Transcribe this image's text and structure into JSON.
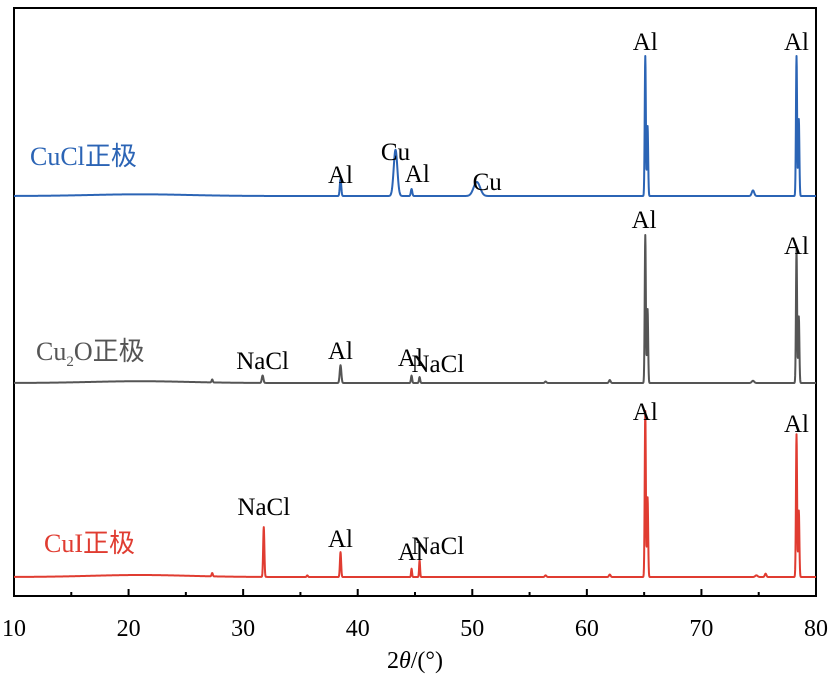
{
  "chart_data": {
    "type": "line",
    "xlabel_parts": [
      "2",
      "θ",
      "/(°)"
    ],
    "xlim": [
      10,
      80
    ],
    "x_major_ticks": [
      10,
      20,
      30,
      40,
      50,
      60,
      70,
      80
    ],
    "x_tick_labels": [
      "10",
      "20",
      "30",
      "40",
      "50",
      "60",
      "70",
      "80"
    ],
    "y_axis_shown": false,
    "grid": false,
    "series": [
      {
        "name": "CuCl正极",
        "name_parts": [
          "CuCl正极"
        ],
        "color": "#2b64b5",
        "peaks": [
          {
            "x": 38.5,
            "h": 0.12,
            "w": 0.18
          },
          {
            "x": 43.3,
            "h": 0.33,
            "w": 0.45
          },
          {
            "x": 44.7,
            "h": 0.05,
            "w": 0.18
          },
          {
            "x": 50.4,
            "h": 0.1,
            "w": 0.8
          },
          {
            "x": 65.1,
            "h": 1.0,
            "w": 0.14
          },
          {
            "x": 65.3,
            "h": 0.5,
            "w": 0.14
          },
          {
            "x": 74.5,
            "h": 0.04,
            "w": 0.3
          },
          {
            "x": 78.3,
            "h": 1.0,
            "w": 0.14
          },
          {
            "x": 78.5,
            "h": 0.55,
            "w": 0.14
          }
        ],
        "annotations": [
          {
            "text": "Al",
            "x": 38.5
          },
          {
            "text": "Cu",
            "x": 43.3
          },
          {
            "text": "Al",
            "x": 45.2
          },
          {
            "text": "Cu",
            "x": 51.3
          },
          {
            "text": "Al",
            "x": 65.1
          },
          {
            "text": "Al",
            "x": 78.3
          }
        ]
      },
      {
        "name": "Cu2O正极",
        "name_parts": [
          "Cu",
          "2",
          "O正极"
        ],
        "color": "#555555",
        "peaks": [
          {
            "x": 27.3,
            "h": 0.02,
            "w": 0.15
          },
          {
            "x": 31.7,
            "h": 0.05,
            "w": 0.2
          },
          {
            "x": 38.5,
            "h": 0.12,
            "w": 0.2
          },
          {
            "x": 44.7,
            "h": 0.05,
            "w": 0.15
          },
          {
            "x": 45.4,
            "h": 0.04,
            "w": 0.15
          },
          {
            "x": 56.4,
            "h": 0.01,
            "w": 0.2
          },
          {
            "x": 62.0,
            "h": 0.02,
            "w": 0.2
          },
          {
            "x": 65.1,
            "h": 1.0,
            "w": 0.14
          },
          {
            "x": 65.3,
            "h": 0.5,
            "w": 0.14
          },
          {
            "x": 74.5,
            "h": 0.015,
            "w": 0.3
          },
          {
            "x": 78.3,
            "h": 0.9,
            "w": 0.14
          },
          {
            "x": 78.5,
            "h": 0.45,
            "w": 0.14
          }
        ],
        "annotations": [
          {
            "text": "NaCl",
            "x": 31.7
          },
          {
            "text": "Al",
            "x": 38.5
          },
          {
            "text": "Al",
            "x": 44.6
          },
          {
            "text": "NaCl",
            "x": 47.0
          },
          {
            "text": "Al",
            "x": 65.0
          },
          {
            "text": "Al",
            "x": 78.3
          }
        ]
      },
      {
        "name": "CuI正极",
        "name_parts": [
          "CuI正极"
        ],
        "color": "#e03c31",
        "peaks": [
          {
            "x": 27.3,
            "h": 0.02,
            "w": 0.15
          },
          {
            "x": 31.8,
            "h": 0.3,
            "w": 0.15
          },
          {
            "x": 35.6,
            "h": 0.01,
            "w": 0.15
          },
          {
            "x": 38.5,
            "h": 0.15,
            "w": 0.15
          },
          {
            "x": 44.7,
            "h": 0.05,
            "w": 0.12
          },
          {
            "x": 45.4,
            "h": 0.1,
            "w": 0.12
          },
          {
            "x": 56.4,
            "h": 0.01,
            "w": 0.2
          },
          {
            "x": 62.0,
            "h": 0.015,
            "w": 0.2
          },
          {
            "x": 65.1,
            "h": 1.0,
            "w": 0.14
          },
          {
            "x": 65.3,
            "h": 0.48,
            "w": 0.14
          },
          {
            "x": 74.8,
            "h": 0.01,
            "w": 0.3
          },
          {
            "x": 75.6,
            "h": 0.02,
            "w": 0.2
          },
          {
            "x": 78.3,
            "h": 0.86,
            "w": 0.14
          },
          {
            "x": 78.5,
            "h": 0.4,
            "w": 0.14
          }
        ],
        "annotations": [
          {
            "text": "NaCl",
            "x": 31.8
          },
          {
            "text": "Al",
            "x": 38.5
          },
          {
            "text": "Al",
            "x": 44.6
          },
          {
            "text": "NaCl",
            "x": 47.0
          },
          {
            "text": "Al",
            "x": 65.1
          },
          {
            "text": "Al",
            "x": 78.3
          }
        ]
      }
    ]
  }
}
